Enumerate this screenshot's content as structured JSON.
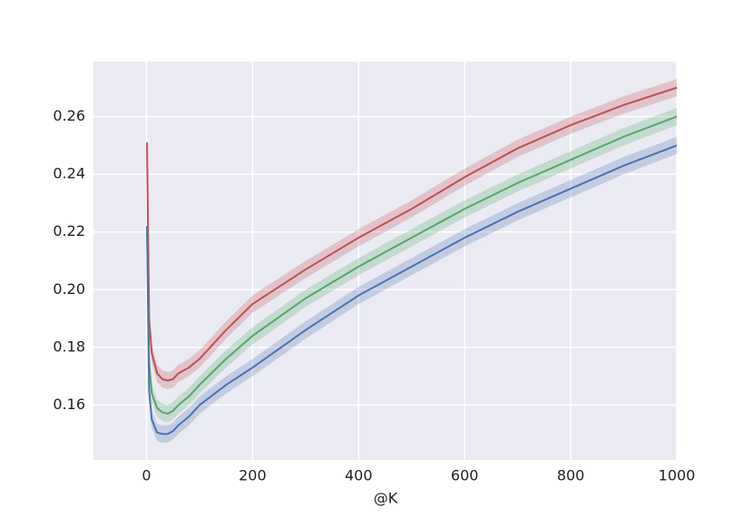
{
  "chart_data": {
    "type": "line",
    "xlabel": "@K",
    "x": [
      1,
      5,
      10,
      20,
      30,
      40,
      50,
      60,
      80,
      100,
      150,
      200,
      300,
      400,
      500,
      600,
      700,
      800,
      900,
      1000
    ],
    "series": [
      {
        "color": "#c44e52",
        "ci": 0.003,
        "values": [
          0.251,
          0.19,
          0.178,
          0.171,
          0.169,
          0.1685,
          0.169,
          0.171,
          0.173,
          0.176,
          0.186,
          0.195,
          0.207,
          0.218,
          0.228,
          0.239,
          0.249,
          0.257,
          0.264,
          0.27
        ]
      },
      {
        "color": "#55a868",
        "ci": 0.003,
        "values": [
          0.222,
          0.175,
          0.164,
          0.159,
          0.1575,
          0.157,
          0.158,
          0.16,
          0.163,
          0.167,
          0.176,
          0.184,
          0.197,
          0.208,
          0.218,
          0.228,
          0.237,
          0.245,
          0.253,
          0.26
        ]
      },
      {
        "color": "#4c72b0",
        "ci": 0.003,
        "values": [
          0.222,
          0.165,
          0.155,
          0.1505,
          0.15,
          0.15,
          0.151,
          0.153,
          0.156,
          0.16,
          0.167,
          0.173,
          0.186,
          0.198,
          0.208,
          0.218,
          0.227,
          0.235,
          0.243,
          0.25
        ]
      }
    ],
    "xlim": [
      -100,
      1000
    ],
    "ylim": [
      0.141,
      0.279
    ],
    "xticks": [
      0,
      200,
      400,
      600,
      800,
      1000
    ],
    "yticks": [
      0.16,
      0.18,
      {
        "value": 0.2,
        "label": "0.20"
      },
      0.22,
      0.24,
      0.26
    ],
    "grid": true,
    "background": "#eaeaf2"
  }
}
